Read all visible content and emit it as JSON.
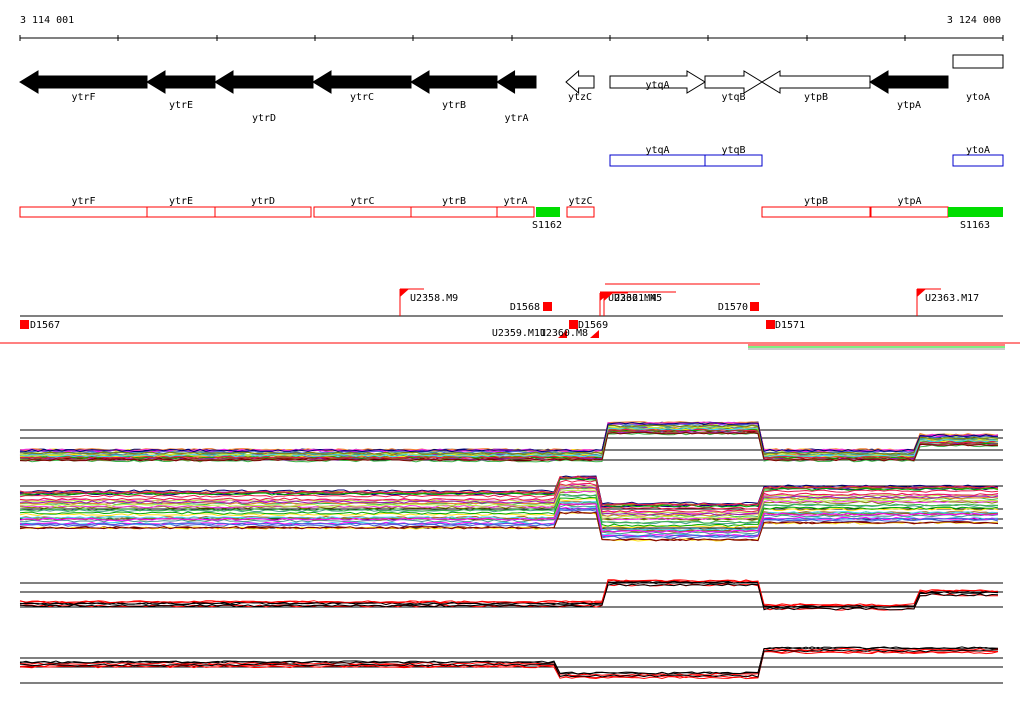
{
  "coords": {
    "start": "3 114 001",
    "end": "3 124 000"
  },
  "genes_top": [
    {
      "label": "ytrF",
      "fill": "black",
      "dir": "left"
    },
    {
      "label": "ytrE",
      "fill": "black",
      "dir": "left"
    },
    {
      "label": "ytrD",
      "fill": "black",
      "dir": "left"
    },
    {
      "label": "ytrC",
      "fill": "black",
      "dir": "left"
    },
    {
      "label": "ytrB",
      "fill": "black",
      "dir": "left"
    },
    {
      "label": "ytrA",
      "fill": "black",
      "dir": "left"
    },
    {
      "label": "ytzC",
      "fill": "white",
      "dir": "left"
    },
    {
      "label": "ytqA",
      "fill": "white",
      "dir": "right"
    },
    {
      "label": "ytqB",
      "fill": "white",
      "dir": "right"
    },
    {
      "label": "ytpB",
      "fill": "white",
      "dir": "left"
    },
    {
      "label": "ytpA",
      "fill": "black",
      "dir": "left"
    },
    {
      "label": "ytoA",
      "fill": "white",
      "dir": "right"
    }
  ],
  "blue_boxes": [
    "ytqA",
    "ytqB",
    "ytoA"
  ],
  "red_boxes": [
    "ytrF",
    "ytrE",
    "ytrD",
    "ytrC",
    "ytrB",
    "ytrA",
    "ytzC",
    "ytpB",
    "ytpA"
  ],
  "green_labels": [
    "S1162",
    "S1163"
  ],
  "track_labels": [
    "U2358.M9",
    "D1568",
    "D1567",
    "U2359.M11",
    "U2360.M8",
    "D1569",
    "U2362.M4",
    "U2361.M5",
    "D1570",
    "D1571",
    "U2363.M17"
  ],
  "colors": {
    "red": "#ff0000",
    "green": "#00dd00",
    "blue": "#0000cc",
    "black": "#000000"
  }
}
